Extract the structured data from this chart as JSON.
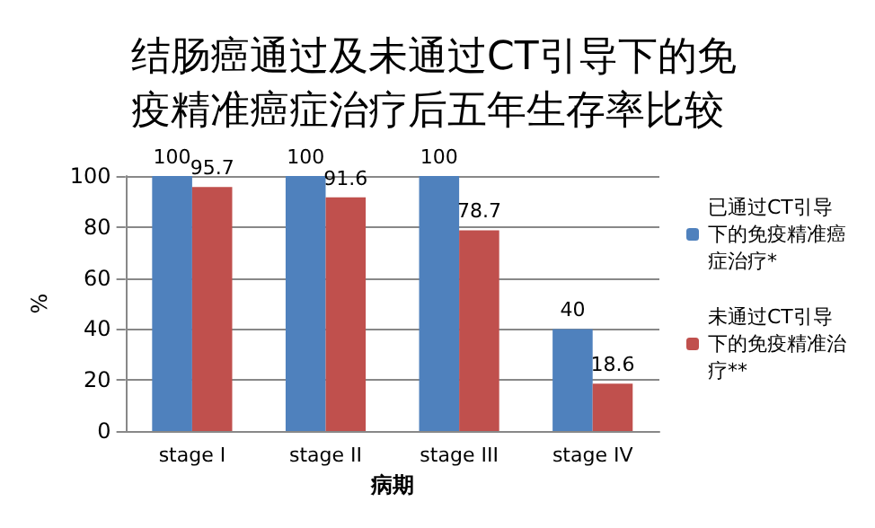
{
  "chart_data": {
    "type": "bar",
    "title": "结肠癌通过及未通过CT引导下的免疫精准癌症治疗后五年生存率比较",
    "xlabel": "病期",
    "ylabel": "%",
    "categories": [
      "stage I",
      "stage II",
      "stage III",
      "stage IV"
    ],
    "series": [
      {
        "name": "已通过CT引导下的免疫精准癌症治疗*",
        "color": "#4f81bd",
        "values": [
          100,
          100,
          100,
          40
        ]
      },
      {
        "name": "未通过CT引导下的免疫精准治疗**",
        "color": "#c0504d",
        "values": [
          95.7,
          91.6,
          78.7,
          18.6
        ]
      }
    ],
    "ylim": [
      0,
      100
    ],
    "yticks": [
      0,
      20,
      40,
      60,
      80,
      100
    ],
    "grid": "y",
    "legend": "right",
    "data_labels": true
  }
}
